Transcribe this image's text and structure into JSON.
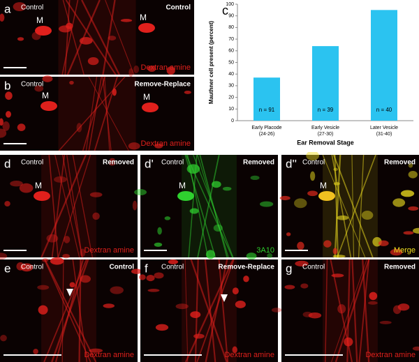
{
  "panels": [
    {
      "letter": "a",
      "left": "Control",
      "right": "Control",
      "stain": "Dextran amine",
      "stain_color": "#e0201c",
      "markers": [
        "M",
        "M"
      ]
    },
    {
      "letter": "b",
      "left": "Control",
      "right": "Remove-Replace",
      "stain": "Dextran amine",
      "stain_color": "#e0201c",
      "markers": [
        "M",
        "M"
      ]
    },
    {
      "letter": "d",
      "left": "Control",
      "right": "Removed",
      "stain": "Dextran amine",
      "stain_color": "#e0201c",
      "markers": [
        "M"
      ]
    },
    {
      "letter": "d'",
      "left": "Control",
      "right": "Removed",
      "stain": "3A10",
      "stain_color": "#2fd12f",
      "markers": [
        "M"
      ]
    },
    {
      "letter": "d''",
      "left": "Control",
      "right": "Removed",
      "stain": "Merge",
      "stain_color": "#f0e020",
      "markers": [
        "M"
      ]
    },
    {
      "letter": "e",
      "left": "Control",
      "right": "Control",
      "stain": "Dextran amine",
      "stain_color": "#e0201c",
      "markers": []
    },
    {
      "letter": "f",
      "left": "Control",
      "right": "Remove-Replace",
      "stain": "Dextran amine",
      "stain_color": "#e0201c",
      "markers": []
    },
    {
      "letter": "g",
      "left": "Control",
      "right": "Removed",
      "stain": "Dextran amine",
      "stain_color": "#e0201c",
      "markers": []
    }
  ],
  "chart_data": {
    "type": "bar",
    "panel_letter": "c",
    "y_label": "Mauthner cell present (percent)",
    "x_label": "Ear Removal Stage",
    "categories": [
      "Early Placode",
      "Early Vesicle",
      "Later Vesicle"
    ],
    "category_sublabels": [
      "(24-26)",
      "(27-30)",
      "(31-40)"
    ],
    "values": [
      37,
      64,
      95
    ],
    "annotations": [
      "n = 91",
      "n = 39",
      "n = 40"
    ],
    "color": "#2bc3f0",
    "ylim": [
      0,
      100
    ],
    "yticks": [
      0,
      10,
      20,
      30,
      40,
      50,
      60,
      70,
      80,
      90,
      100
    ]
  }
}
